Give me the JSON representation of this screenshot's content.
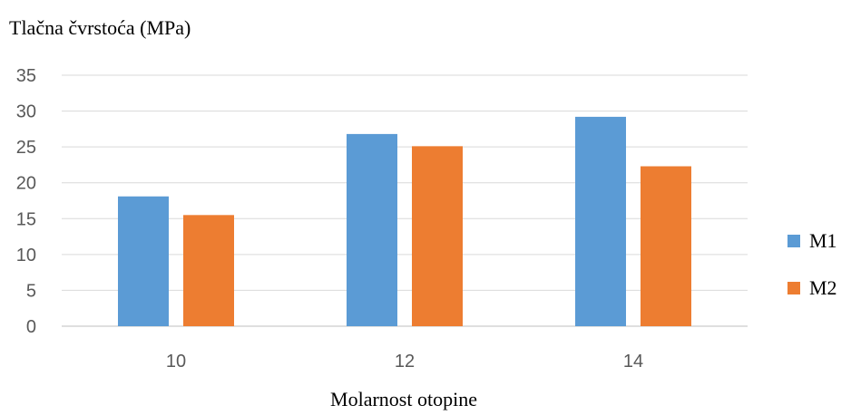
{
  "chart_data": {
    "type": "bar",
    "title": "",
    "ylabel": "Tlačna čvrstoća (MPa)",
    "xlabel": "Molarnost otopine",
    "categories": [
      "10",
      "12",
      "14"
    ],
    "series": [
      {
        "name": "M1",
        "color": "#5B9BD5",
        "values": [
          18.1,
          26.8,
          29.2
        ]
      },
      {
        "name": "M2",
        "color": "#ED7D31",
        "values": [
          15.5,
          25.1,
          22.3
        ]
      }
    ],
    "ylim": [
      0,
      35
    ],
    "yticks": [
      "0",
      "5",
      "10",
      "15",
      "20",
      "25",
      "30",
      "35"
    ],
    "grid": true,
    "legend": "right"
  }
}
